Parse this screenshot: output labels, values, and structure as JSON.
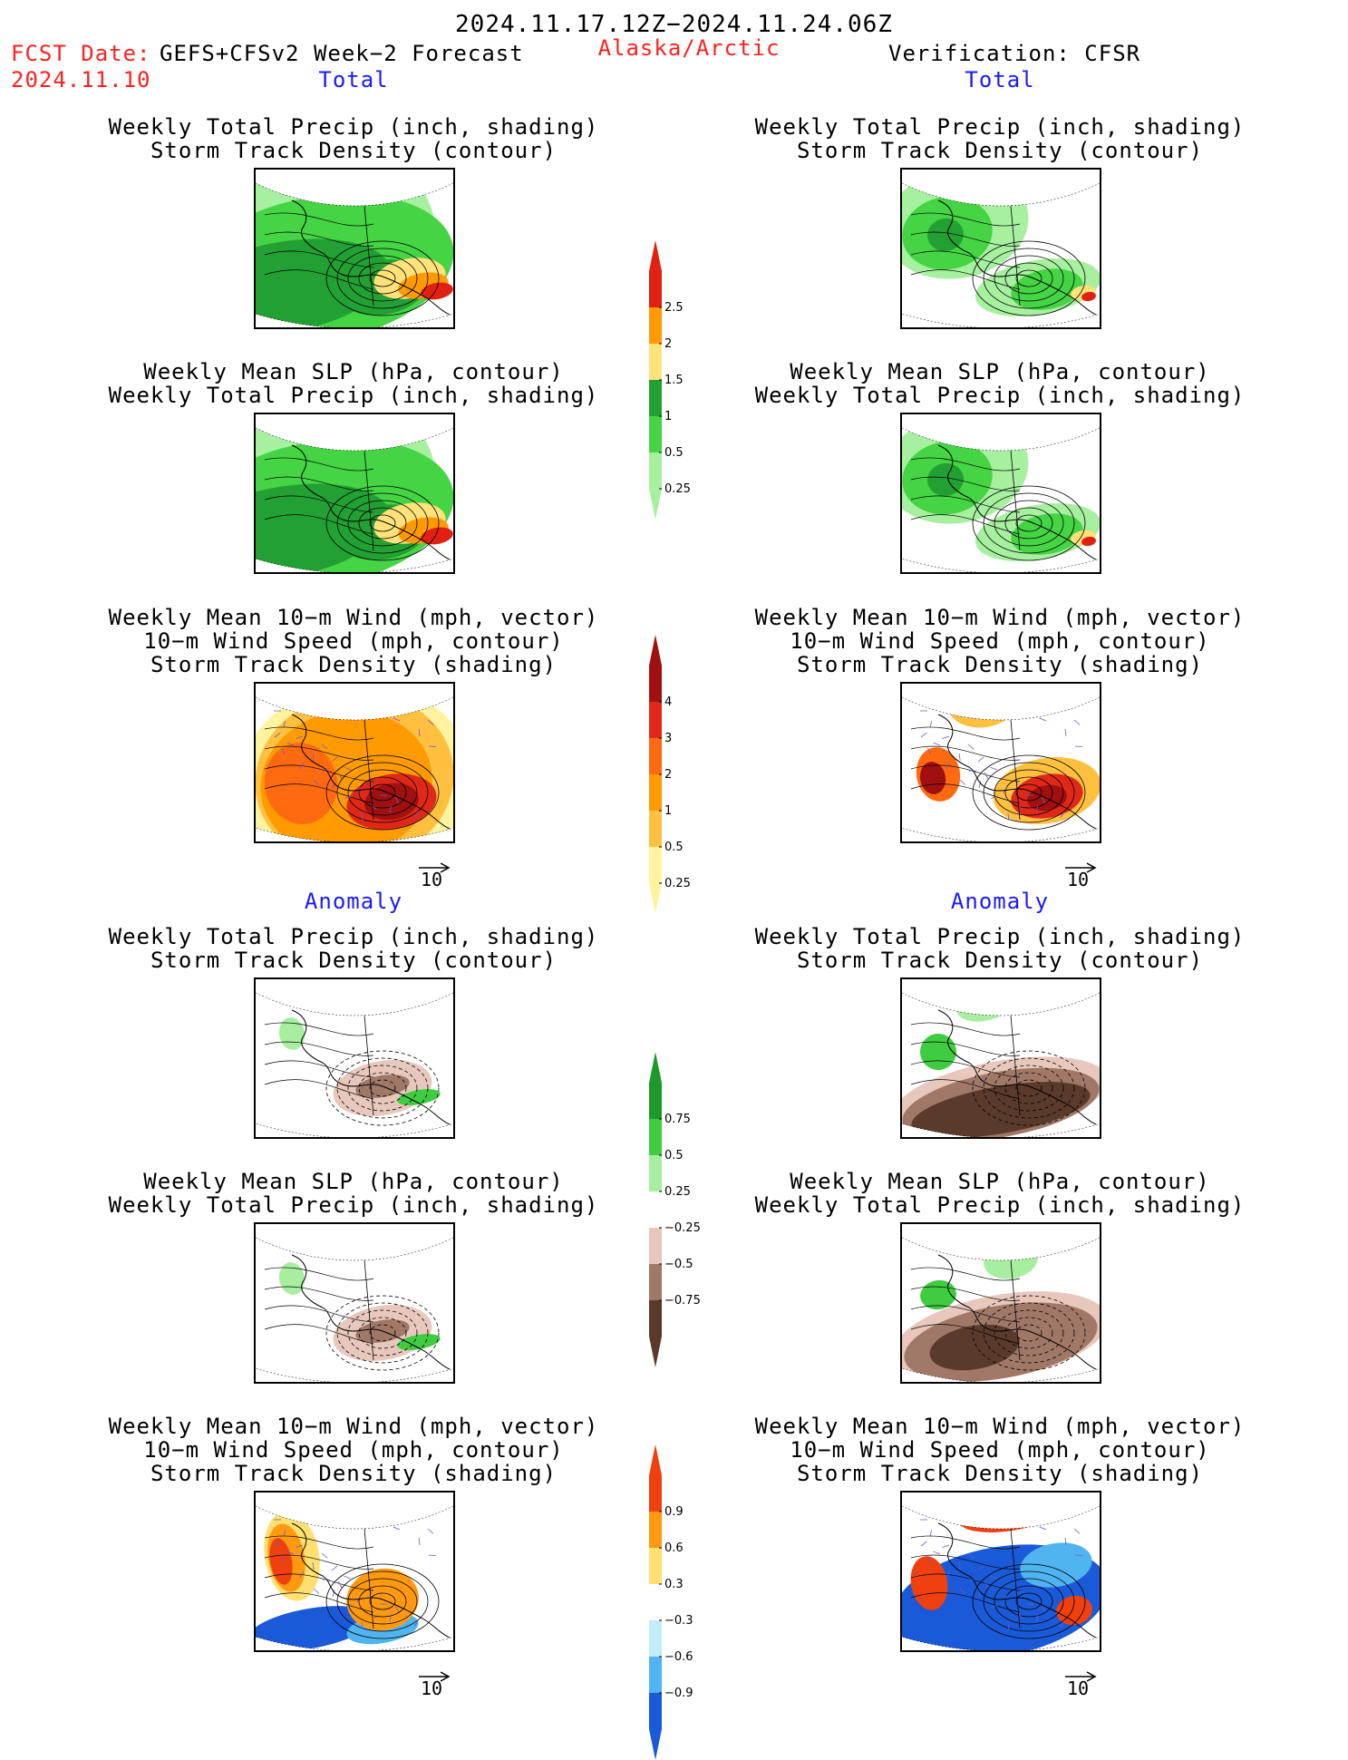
{
  "header": {
    "period": "2024.11.17.12Z−2024.11.24.06Z",
    "fcst_prefix": "FCST Date:",
    "fcst_model": "GEFS+CFSv2 Week−2 Forecast",
    "fcst_date": "2024.11.10",
    "region": "Alaska/Arctic",
    "verification": "Verification: CFSR"
  },
  "sections": {
    "total": "Total",
    "anomaly": "Anomaly"
  },
  "titles": {
    "precip_track_1": "Weekly Total Precip (inch, shading)",
    "precip_track_2": "Storm Track Density (contour)",
    "slp_precip_1": "Weekly Mean SLP (hPa, contour)",
    "slp_precip_2": "Weekly Total Precip (inch, shading)",
    "wind_1": "Weekly Mean 10−m Wind (mph, vector)",
    "wind_2": "10−m Wind Speed (mph, contour)",
    "wind_3": "Storm Track Density (shading)"
  },
  "vector_ref": "10",
  "colorbars": {
    "total_precip": {
      "labels": [
        "2.5",
        "2",
        "1.5",
        "1",
        "0.5",
        "0.25"
      ],
      "colors": [
        "#e02010",
        "#ff9a00",
        "#ffe27a",
        "#22a033",
        "#44d444",
        "#a6f0a0"
      ]
    },
    "total_track": {
      "labels": [
        "4",
        "3",
        "2",
        "1",
        "0.5",
        "0.25"
      ],
      "colors": [
        "#a01010",
        "#e02818",
        "#ff6a10",
        "#ff9a00",
        "#ffc040",
        "#fff3a0"
      ]
    },
    "anom_precip": {
      "labels": [
        "0.75",
        "0.5",
        "0.25",
        "−0.25",
        "−0.5",
        "−0.75"
      ],
      "colors": [
        "#1e9a2a",
        "#40cc40",
        "#a8eea0",
        "#ffffff",
        "#e8c8bc",
        "#a07868",
        "#5a3a2a"
      ]
    },
    "anom_track": {
      "labels": [
        "0.9",
        "0.6",
        "0.3",
        "−0.3",
        "−0.6",
        "−0.9"
      ],
      "colors": [
        "#f04010",
        "#ff9a10",
        "#ffe070",
        "#ffffff",
        "#bfeefa",
        "#50b4f0",
        "#1a5ad8"
      ]
    }
  }
}
